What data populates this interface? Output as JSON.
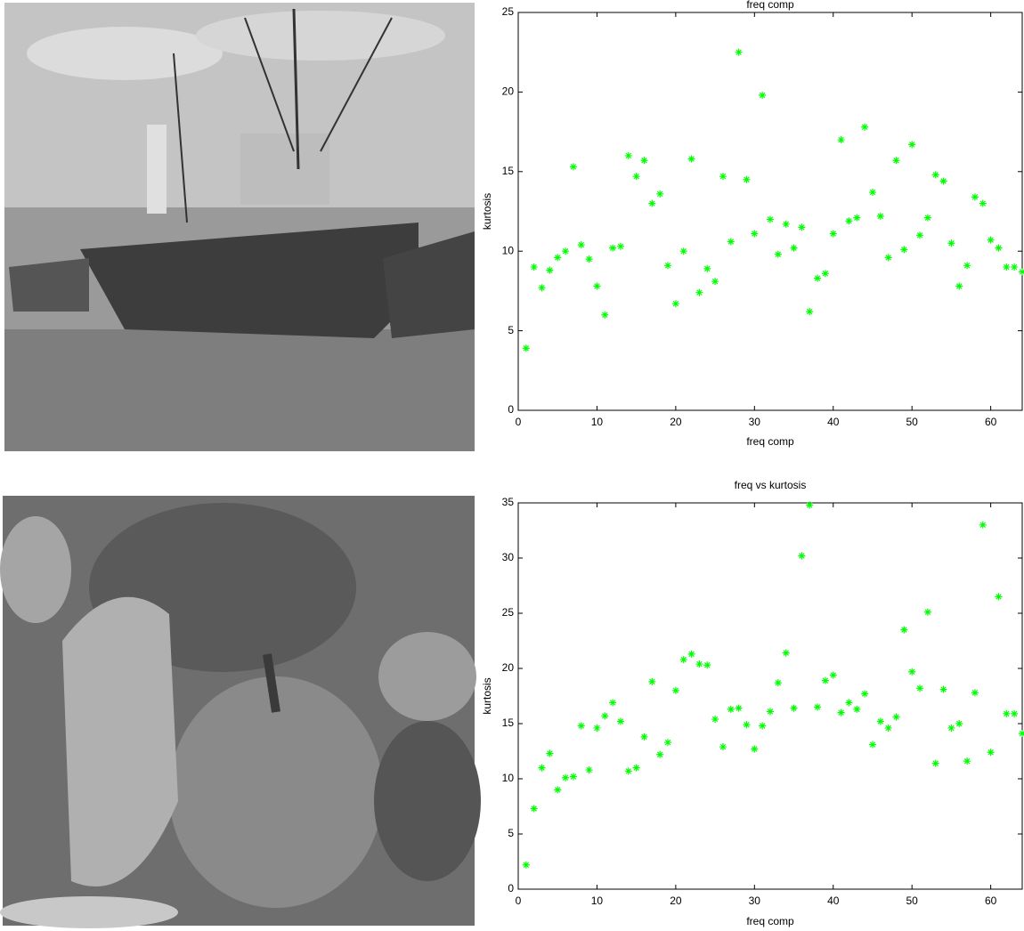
{
  "chart_data": [
    {
      "type": "scatter",
      "title": "freq comp",
      "x_label": "freq comp",
      "y_label": "kurtosis",
      "color": "#00ff00",
      "xlim": [
        0,
        64
      ],
      "ylim": [
        0,
        25
      ],
      "xticks": [
        0,
        10,
        20,
        30,
        40,
        50,
        60
      ],
      "yticks": [
        0,
        5,
        10,
        15,
        20,
        25
      ],
      "x": [
        1,
        2,
        3,
        4,
        5,
        6,
        7,
        8,
        9,
        10,
        11,
        12,
        13,
        14,
        15,
        16,
        17,
        18,
        19,
        20,
        21,
        22,
        23,
        24,
        25,
        26,
        27,
        28,
        29,
        30,
        31,
        32,
        33,
        34,
        35,
        36,
        37,
        38,
        39,
        40,
        41,
        42,
        43,
        44,
        45,
        46,
        47,
        48,
        49,
        50,
        51,
        52,
        53,
        54,
        55,
        56,
        57,
        58,
        59,
        60,
        61,
        62,
        63,
        64
      ],
      "values": [
        3.9,
        9.0,
        7.7,
        8.8,
        9.6,
        10.0,
        15.3,
        10.4,
        9.5,
        7.8,
        6.0,
        10.2,
        10.3,
        16.0,
        14.7,
        15.7,
        13.0,
        13.6,
        9.1,
        6.7,
        10.0,
        15.8,
        7.4,
        8.9,
        8.1,
        14.7,
        10.6,
        22.5,
        14.5,
        11.1,
        19.8,
        12.0,
        9.8,
        11.7,
        10.2,
        11.5,
        6.2,
        8.3,
        8.6,
        11.1,
        17.0,
        11.9,
        12.1,
        17.8,
        13.7,
        12.2,
        9.6,
        15.7,
        10.1,
        16.7,
        11.0,
        12.1,
        14.8,
        14.4,
        10.5,
        7.8,
        9.1,
        13.4,
        13.0,
        10.7,
        10.2,
        9.0,
        9.0,
        8.7
      ]
    },
    {
      "type": "scatter",
      "title": "freq vs kurtosis",
      "x_label": "freq comp",
      "y_label": "kurtosis",
      "color": "#00ff00",
      "xlim": [
        0,
        64
      ],
      "ylim": [
        0,
        35
      ],
      "xticks": [
        0,
        10,
        20,
        30,
        40,
        50,
        60
      ],
      "yticks": [
        0,
        5,
        10,
        15,
        20,
        25,
        30,
        35
      ],
      "x": [
        1,
        2,
        3,
        4,
        5,
        6,
        7,
        8,
        9,
        10,
        11,
        12,
        13,
        14,
        15,
        16,
        17,
        18,
        19,
        20,
        21,
        22,
        23,
        24,
        25,
        26,
        27,
        28,
        29,
        30,
        31,
        32,
        33,
        34,
        35,
        36,
        37,
        38,
        39,
        40,
        41,
        42,
        43,
        44,
        45,
        46,
        47,
        48,
        49,
        50,
        51,
        52,
        53,
        54,
        55,
        56,
        57,
        58,
        59,
        60,
        61,
        62,
        63,
        64
      ],
      "values": [
        2.2,
        7.3,
        11.0,
        12.3,
        9.0,
        10.1,
        10.2,
        14.8,
        10.8,
        14.6,
        15.7,
        16.9,
        15.2,
        10.7,
        11.0,
        13.8,
        18.8,
        12.2,
        13.3,
        18.0,
        20.8,
        21.3,
        20.4,
        20.3,
        15.4,
        12.9,
        16.3,
        16.4,
        14.9,
        12.7,
        14.8,
        16.1,
        18.7,
        21.4,
        16.4,
        30.2,
        34.8,
        16.5,
        18.9,
        19.4,
        16.0,
        16.9,
        16.3,
        17.7,
        13.1,
        15.2,
        14.6,
        15.6,
        23.5,
        19.7,
        18.2,
        25.1,
        11.4,
        18.1,
        14.6,
        15.0,
        11.6,
        17.8,
        33.0,
        12.4,
        26.5,
        15.9,
        15.9,
        14.1
      ]
    }
  ]
}
